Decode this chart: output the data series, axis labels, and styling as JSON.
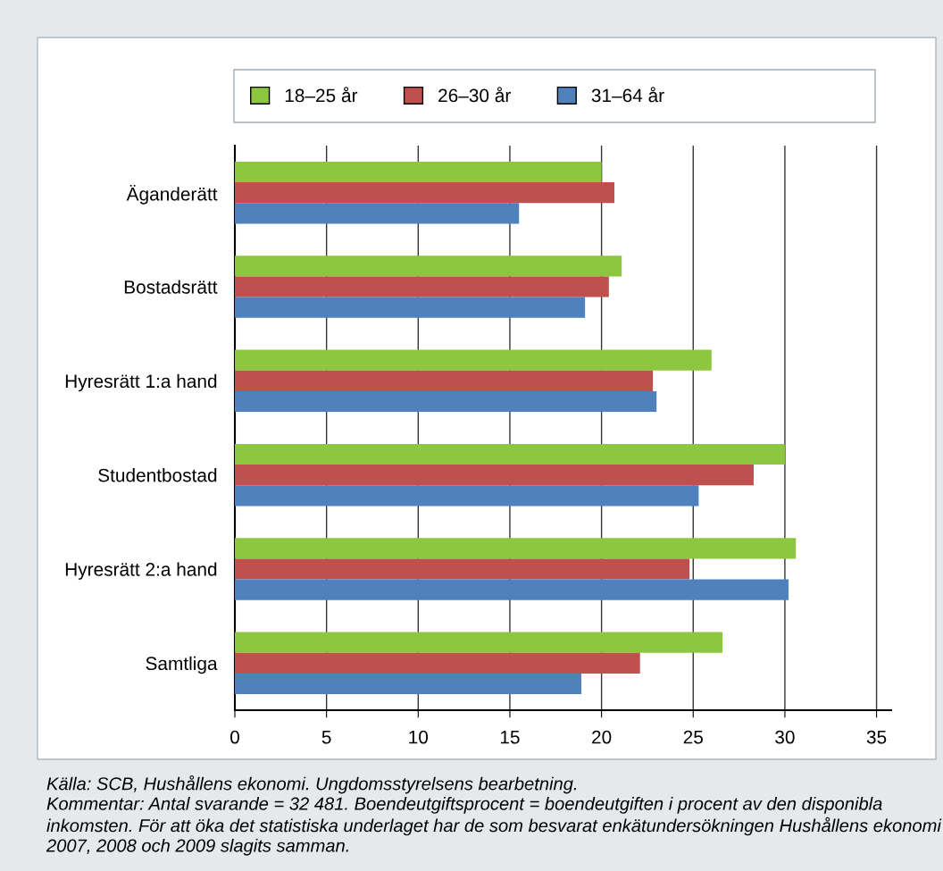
{
  "chart_data": {
    "type": "bar",
    "orientation": "horizontal",
    "categories": [
      "Äganderätt",
      "Bostadsrätt",
      "Hyresrätt 1:a hand",
      "Studentbostad",
      "Hyresrätt 2:a hand",
      "Samtliga"
    ],
    "series": [
      {
        "name": "18–25 år",
        "color": "#8dc63f",
        "values": [
          20.0,
          21.1,
          26.0,
          30.0,
          30.6,
          26.6
        ]
      },
      {
        "name": "26–30 år",
        "color": "#c0504d",
        "values": [
          20.7,
          20.4,
          22.8,
          28.3,
          24.8,
          22.1
        ]
      },
      {
        "name": "31–64 år",
        "color": "#4f81bd",
        "values": [
          15.5,
          19.1,
          23.0,
          25.3,
          30.2,
          18.9
        ]
      }
    ],
    "xlim": [
      0,
      35.8
    ],
    "xticks": [
      0,
      5,
      10,
      15,
      20,
      25,
      30,
      35
    ],
    "grid": "x",
    "legend": "top",
    "annotations": [
      "Källa: SCB, Hushållens ekonomi. Ungdomsstyrelsens bearbetning.",
      "Kommentar: Antal svarande = 32 481. Boendeutgiftsprocent = boendeutgiften i procent av den disponibla inkomsten. För att öka det statistiska underlaget har de som besvarat enkätundersökningen Hushållens ekonomi 2007, 2008 och 2009 slagits samman."
    ]
  }
}
